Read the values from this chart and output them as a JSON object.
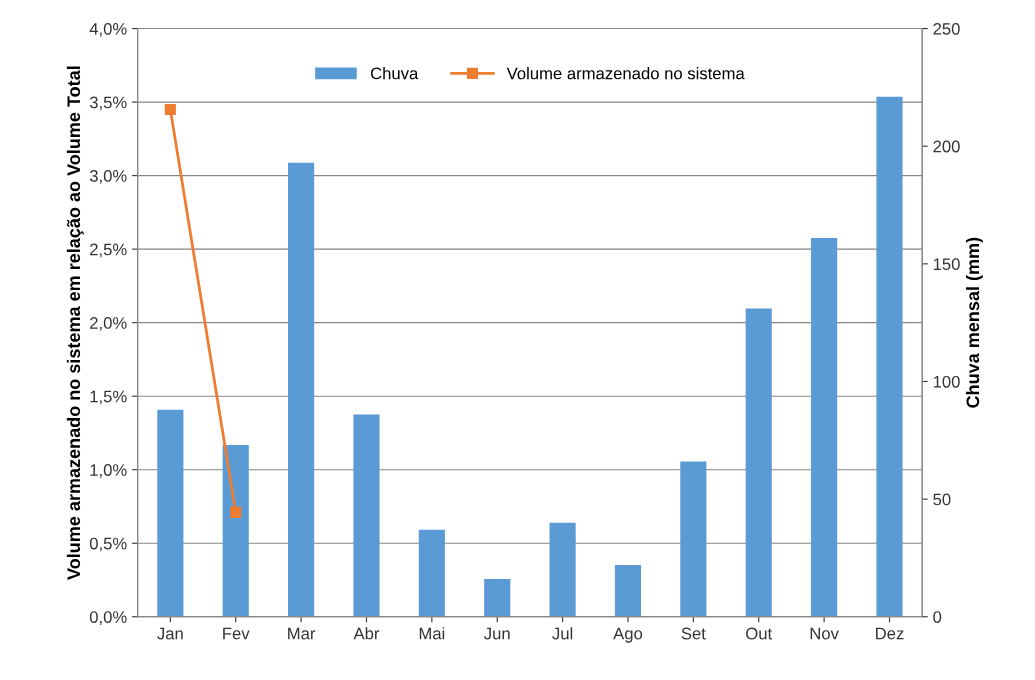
{
  "chart_data": {
    "type": "bar",
    "categories": [
      "Jan",
      "Fev",
      "Mar",
      "Abr",
      "Mai",
      "Jun",
      "Jul",
      "Ago",
      "Set",
      "Out",
      "Nov",
      "Dez"
    ],
    "ylabel": "Volume armazenado no sistema em relação ao Volume Total",
    "y2label": "Chuva mensal (mm)",
    "series": [
      {
        "name": "Chuva",
        "axis": "y2",
        "color": "#5b9bd5",
        "values": [
          88,
          73,
          193,
          86,
          37,
          16,
          40,
          22,
          66,
          131,
          161,
          221
        ]
      },
      {
        "name": "Volume armazenado no sistema",
        "type": "line",
        "axis": "y",
        "color": "#ed7d31",
        "marker": "square",
        "values": [
          3.45,
          0.71,
          null,
          null,
          null,
          null,
          null,
          null,
          null,
          null,
          null,
          null
        ]
      }
    ],
    "ylim": [
      0,
      4
    ],
    "yticks": [
      {
        "value": 0,
        "label": "0,0%"
      },
      {
        "value": 0.5,
        "label": "0,5%"
      },
      {
        "value": 1,
        "label": "1,0%"
      },
      {
        "value": 1.5,
        "label": "1,5%"
      },
      {
        "value": 2,
        "label": "2,0%"
      },
      {
        "value": 2.5,
        "label": "2,5%"
      },
      {
        "value": 3,
        "label": "3,0%"
      },
      {
        "value": 3.5,
        "label": "3,5%"
      },
      {
        "value": 4,
        "label": "4,0%"
      }
    ],
    "y2lim": [
      0,
      250
    ],
    "y2ticks": [
      0,
      50,
      100,
      150,
      200,
      250
    ],
    "grid": "y",
    "legend": "top"
  }
}
